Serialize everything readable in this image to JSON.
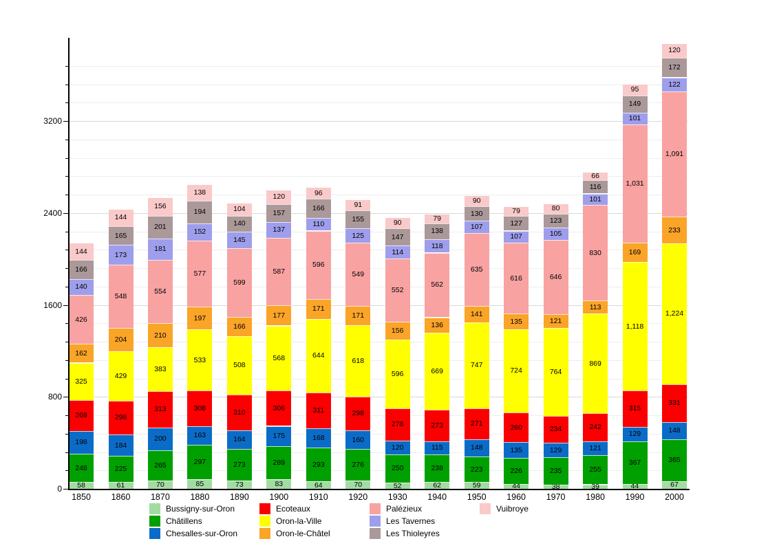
{
  "chart_data": {
    "type": "bar",
    "stacked": true,
    "title": "",
    "xlabel": "",
    "ylabel": "",
    "categories": [
      "1850",
      "1860",
      "1870",
      "1880",
      "1890",
      "1900",
      "1910",
      "1920",
      "1930",
      "1940",
      "1950",
      "1960",
      "1970",
      "1980",
      "1990",
      "2000"
    ],
    "series": [
      {
        "name": "Bussigny-sur-Oron",
        "color": "#A3DBA3",
        "values": [
          58,
          61,
          70,
          85,
          73,
          83,
          64,
          70,
          52,
          62,
          59,
          44,
          38,
          39,
          44,
          67
        ]
      },
      {
        "name": "Châtillens",
        "color": "#00A000",
        "values": [
          248,
          225,
          265,
          297,
          273,
          289,
          293,
          276,
          250,
          238,
          223,
          226,
          235,
          255,
          367,
          365
        ]
      },
      {
        "name": "Chesalles-sur-Oron",
        "color": "#0B6CC8",
        "values": [
          198,
          184,
          200,
          163,
          164,
          175,
          168,
          160,
          120,
          115,
          148,
          135,
          129,
          121,
          129,
          148
        ]
      },
      {
        "name": "Ecoteaux",
        "color": "#FB0000",
        "values": [
          269,
          298,
          313,
          308,
          310,
          306,
          311,
          298,
          278,
          273,
          271,
          260,
          234,
          242,
          315,
          331
        ]
      },
      {
        "name": "Oron-la-Ville",
        "color": "#FFFF00",
        "values": [
          325,
          429,
          383,
          533,
          508,
          568,
          644,
          618,
          596,
          669,
          747,
          724,
          764,
          869,
          1118,
          1224
        ]
      },
      {
        "name": "Oron-le-Châtel",
        "color": "#FAA428",
        "values": [
          162,
          204,
          210,
          197,
          166,
          177,
          171,
          171,
          156,
          136,
          141,
          135,
          121,
          113,
          169,
          233
        ]
      },
      {
        "name": "Palézieux",
        "color": "#F8A2A2",
        "values": [
          426,
          548,
          554,
          577,
          599,
          587,
          596,
          549,
          552,
          562,
          635,
          616,
          646,
          830,
          1031,
          1091
        ]
      },
      {
        "name": "Les Tavernes",
        "color": "#9E9EEC",
        "values": [
          140,
          173,
          181,
          152,
          145,
          137,
          110,
          125,
          114,
          118,
          107,
          107,
          105,
          101,
          101,
          122
        ]
      },
      {
        "name": "Les Thioleyres",
        "color": "#AB9898",
        "values": [
          166,
          165,
          201,
          194,
          140,
          157,
          166,
          155,
          147,
          138,
          130,
          127,
          123,
          116,
          149,
          172
        ]
      },
      {
        "name": "Vuibroye",
        "color": "#FAC9C9",
        "values": [
          144,
          144,
          156,
          138,
          104,
          120,
          96,
          91,
          90,
          79,
          90,
          79,
          80,
          66,
          95,
          120
        ]
      }
    ],
    "ylim": [
      0,
      3925
    ],
    "yticks": {
      "labels": [
        "0",
        "800",
        "1600",
        "2400",
        "3200"
      ],
      "values": [
        0,
        800,
        1600,
        2400,
        3200
      ],
      "minor_step": 160
    },
    "grid": true,
    "legend_position": "bottom",
    "value_label_format": "thousands-comma",
    "colors": {
      "background": "#FFFFFF",
      "axis": "#000000",
      "gridline_minor": "#EDEDED",
      "gridline_major": "#D8D8D8",
      "segment_separator": "rgba(255,255,255,0.75)",
      "label_text": "#000000"
    }
  }
}
